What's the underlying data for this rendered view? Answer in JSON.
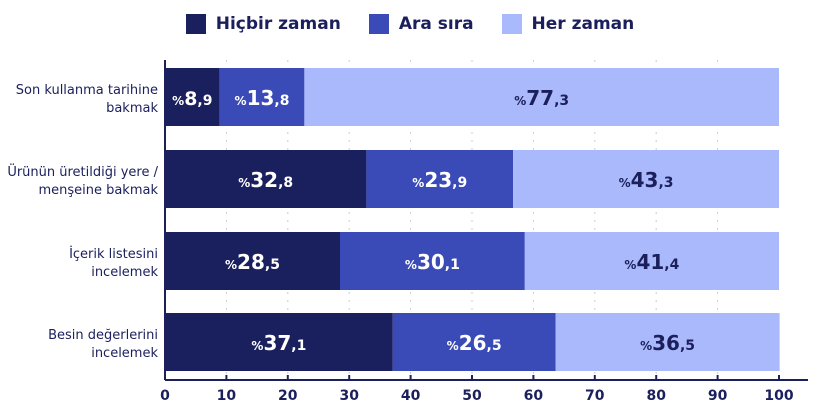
{
  "chart_data": {
    "type": "bar",
    "orientation": "horizontal-stacked",
    "categories": [
      "Son kullanma tarihine bakmak",
      "Ürünün üretildiği yere / menşeine bakmak",
      "İçerik listesini incelemek",
      "Besin değerlerini incelemek"
    ],
    "category_lines": [
      [
        "Son kullanma tarihine",
        "bakmak"
      ],
      [
        "Ürünün üretildiği yere /",
        "menşeine bakmak"
      ],
      [
        "İçerik listesini",
        "incelemek"
      ],
      [
        "Besin değerlerini",
        "incelemek"
      ]
    ],
    "series": [
      {
        "name": "Hiçbir zaman",
        "color": "#1a1f5e",
        "label_color": "#ffffff",
        "values": [
          8.9,
          32.8,
          28.5,
          37.1
        ]
      },
      {
        "name": "Ara sıra",
        "color": "#3a4bb8",
        "label_color": "#ffffff",
        "values": [
          13.8,
          23.9,
          30.1,
          26.5
        ]
      },
      {
        "name": "Her zaman",
        "color": "#a9b9fb",
        "label_color": "#1b1f5c",
        "values": [
          77.3,
          43.3,
          41.4,
          36.5
        ]
      }
    ],
    "label_prefix": "%",
    "decimal_separator": ",",
    "xlim": [
      0,
      100
    ],
    "xticks": [
      0,
      10,
      20,
      30,
      40,
      50,
      60,
      70,
      80,
      90,
      100
    ],
    "grid": true,
    "legend_position": "top"
  }
}
